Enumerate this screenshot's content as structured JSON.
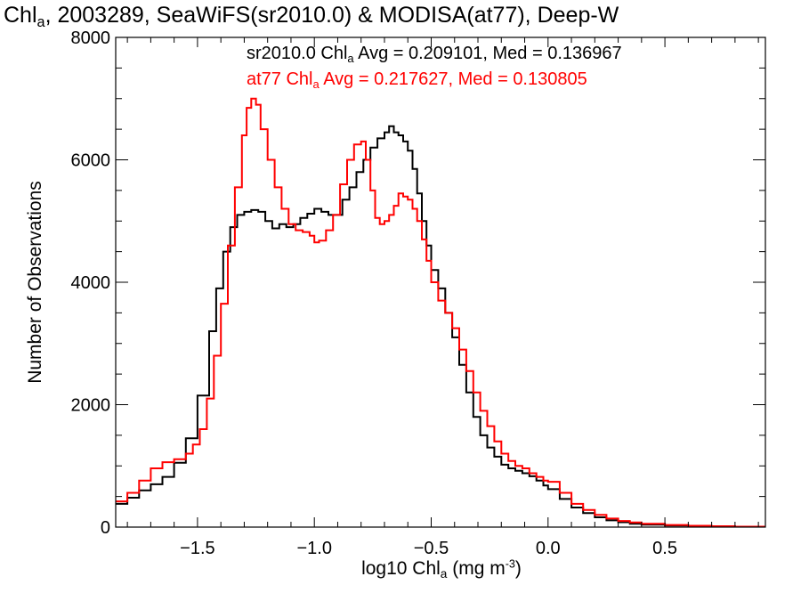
{
  "title": {
    "pre": "Chl",
    "sub": "a",
    "post": ", 2003289, SeaWiFS(sr2010.0) & MODISA(at77), Deep-W"
  },
  "annotations": [
    {
      "pre": "sr2010.0 Chl",
      "sub": "a",
      "post": " Avg = 0.209101, Med = 0.136967",
      "color": "#000000"
    },
    {
      "pre": "at77 Chl",
      "sub": "a",
      "post": " Avg = 0.217627, Med = 0.130805",
      "color": "#ff0000"
    }
  ],
  "axes": {
    "xlabel": {
      "pre": "log10 Chl",
      "sub": "a",
      "mid": " (mg m",
      "sup": "-3",
      "post": ")"
    },
    "ylabel": "Number of Observations"
  },
  "chart_data": {
    "type": "line",
    "step": true,
    "xlim": [
      -1.85,
      0.93
    ],
    "ylim": [
      0,
      8000
    ],
    "xticks": [
      -1.5,
      -1.0,
      -0.5,
      0.0,
      0.5
    ],
    "xtick_labels": [
      "−1.5",
      "−1.0",
      "−0.5",
      "0.0",
      "0.5"
    ],
    "yticks": [
      0,
      2000,
      4000,
      6000,
      8000
    ],
    "ytick_labels": [
      "0",
      "2000",
      "4000",
      "6000",
      "8000"
    ],
    "grid": false,
    "series": [
      {
        "name": "sr2010.0",
        "color": "#000000",
        "points": [
          [
            -1.85,
            380
          ],
          [
            -1.8,
            480
          ],
          [
            -1.75,
            600
          ],
          [
            -1.7,
            700
          ],
          [
            -1.65,
            820
          ],
          [
            -1.6,
            1050
          ],
          [
            -1.55,
            1450
          ],
          [
            -1.5,
            2150
          ],
          [
            -1.45,
            3200
          ],
          [
            -1.42,
            3900
          ],
          [
            -1.39,
            4500
          ],
          [
            -1.36,
            4900
          ],
          [
            -1.33,
            5100
          ],
          [
            -1.3,
            5150
          ],
          [
            -1.27,
            5180
          ],
          [
            -1.24,
            5150
          ],
          [
            -1.21,
            5000
          ],
          [
            -1.18,
            4880
          ],
          [
            -1.15,
            4950
          ],
          [
            -1.12,
            4900
          ],
          [
            -1.09,
            4950
          ],
          [
            -1.06,
            5050
          ],
          [
            -1.03,
            5120
          ],
          [
            -1.0,
            5200
          ],
          [
            -0.97,
            5150
          ],
          [
            -0.94,
            5100
          ],
          [
            -0.91,
            5100
          ],
          [
            -0.88,
            5350
          ],
          [
            -0.85,
            5550
          ],
          [
            -0.82,
            5800
          ],
          [
            -0.79,
            6000
          ],
          [
            -0.76,
            6200
          ],
          [
            -0.73,
            6350
          ],
          [
            -0.7,
            6450
          ],
          [
            -0.68,
            6550
          ],
          [
            -0.66,
            6450
          ],
          [
            -0.64,
            6400
          ],
          [
            -0.62,
            6300
          ],
          [
            -0.6,
            6150
          ],
          [
            -0.58,
            5850
          ],
          [
            -0.56,
            5450
          ],
          [
            -0.54,
            5000
          ],
          [
            -0.52,
            4600
          ],
          [
            -0.5,
            4200
          ],
          [
            -0.47,
            3900
          ],
          [
            -0.44,
            3500
          ],
          [
            -0.41,
            3100
          ],
          [
            -0.38,
            2650
          ],
          [
            -0.35,
            2200
          ],
          [
            -0.32,
            1800
          ],
          [
            -0.29,
            1500
          ],
          [
            -0.26,
            1300
          ],
          [
            -0.23,
            1150
          ],
          [
            -0.2,
            1020
          ],
          [
            -0.17,
            960
          ],
          [
            -0.14,
            920
          ],
          [
            -0.11,
            880
          ],
          [
            -0.08,
            830
          ],
          [
            -0.05,
            760
          ],
          [
            -0.02,
            680
          ],
          [
            0.0,
            620
          ],
          [
            0.05,
            460
          ],
          [
            0.1,
            320
          ],
          [
            0.15,
            230
          ],
          [
            0.2,
            160
          ],
          [
            0.25,
            110
          ],
          [
            0.3,
            80
          ],
          [
            0.35,
            55
          ],
          [
            0.4,
            40
          ],
          [
            0.5,
            25
          ],
          [
            0.6,
            15
          ],
          [
            0.7,
            10
          ],
          [
            0.8,
            5
          ],
          [
            0.93,
            3
          ]
        ]
      },
      {
        "name": "at77",
        "color": "#ff0000",
        "points": [
          [
            -1.85,
            420
          ],
          [
            -1.8,
            560
          ],
          [
            -1.75,
            760
          ],
          [
            -1.7,
            960
          ],
          [
            -1.65,
            1060
          ],
          [
            -1.6,
            1110
          ],
          [
            -1.55,
            1200
          ],
          [
            -1.52,
            1350
          ],
          [
            -1.49,
            1600
          ],
          [
            -1.46,
            2100
          ],
          [
            -1.43,
            2800
          ],
          [
            -1.4,
            3650
          ],
          [
            -1.37,
            4600
          ],
          [
            -1.34,
            5550
          ],
          [
            -1.31,
            6400
          ],
          [
            -1.29,
            6850
          ],
          [
            -1.27,
            7000
          ],
          [
            -1.25,
            6900
          ],
          [
            -1.23,
            6500
          ],
          [
            -1.2,
            6000
          ],
          [
            -1.17,
            5550
          ],
          [
            -1.14,
            5200
          ],
          [
            -1.11,
            4950
          ],
          [
            -1.08,
            4850
          ],
          [
            -1.05,
            4820
          ],
          [
            -1.02,
            4760
          ],
          [
            -1.0,
            4650
          ],
          [
            -0.98,
            4680
          ],
          [
            -0.95,
            4850
          ],
          [
            -0.92,
            5100
          ],
          [
            -0.89,
            5600
          ],
          [
            -0.86,
            6000
          ],
          [
            -0.83,
            6250
          ],
          [
            -0.8,
            6300
          ],
          [
            -0.78,
            6000
          ],
          [
            -0.76,
            5500
          ],
          [
            -0.74,
            5050
          ],
          [
            -0.72,
            4950
          ],
          [
            -0.7,
            5000
          ],
          [
            -0.68,
            5100
          ],
          [
            -0.66,
            5250
          ],
          [
            -0.64,
            5450
          ],
          [
            -0.62,
            5400
          ],
          [
            -0.6,
            5350
          ],
          [
            -0.58,
            5200
          ],
          [
            -0.56,
            5000
          ],
          [
            -0.54,
            4700
          ],
          [
            -0.52,
            4350
          ],
          [
            -0.5,
            4000
          ],
          [
            -0.47,
            3700
          ],
          [
            -0.44,
            3500
          ],
          [
            -0.41,
            3250
          ],
          [
            -0.38,
            2900
          ],
          [
            -0.35,
            2550
          ],
          [
            -0.32,
            2200
          ],
          [
            -0.29,
            1900
          ],
          [
            -0.26,
            1650
          ],
          [
            -0.23,
            1400
          ],
          [
            -0.2,
            1200
          ],
          [
            -0.17,
            1080
          ],
          [
            -0.14,
            1000
          ],
          [
            -0.11,
            960
          ],
          [
            -0.08,
            880
          ],
          [
            -0.05,
            820
          ],
          [
            -0.02,
            760
          ],
          [
            0.0,
            740
          ],
          [
            0.05,
            560
          ],
          [
            0.1,
            380
          ],
          [
            0.15,
            280
          ],
          [
            0.2,
            200
          ],
          [
            0.25,
            140
          ],
          [
            0.3,
            100
          ],
          [
            0.35,
            75
          ],
          [
            0.4,
            55
          ],
          [
            0.5,
            35
          ],
          [
            0.6,
            22
          ],
          [
            0.7,
            14
          ],
          [
            0.8,
            8
          ],
          [
            0.93,
            4
          ]
        ]
      }
    ]
  }
}
